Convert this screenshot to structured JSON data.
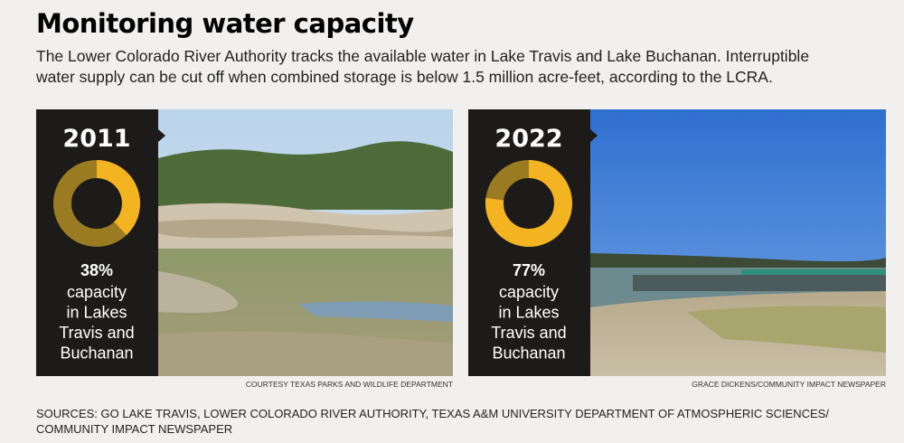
{
  "title": "Monitoring water capacity",
  "description": [
    "The Lower Colorado River Authority tracks the available water in Lake Travis and Lake Buchanan. Interruptible",
    "water supply can be cut off when combined storage is below 1.5 million acre-feet, according to the LCRA."
  ],
  "panels": [
    {
      "year": "2011",
      "value": 38,
      "value_label": "38%",
      "caption": [
        "capacity",
        "in Lakes",
        "Travis and",
        "Buchanan"
      ],
      "credit": "COURTESY TEXAS PARKS AND WILDLIFE DEPARTMENT"
    },
    {
      "year": "2022",
      "value": 77,
      "value_label": "77%",
      "caption": [
        "capacity",
        "in Lakes",
        "Travis and",
        "Buchanan"
      ],
      "credit": "GRACE DICKENS/COMMUNITY IMPACT NEWSPAPER"
    }
  ],
  "sources": [
    "SOURCES: GO LAKE TRAVIS, LOWER COLORADO RIVER AUTHORITY, TEXAS A&M UNIVERSITY DEPARTMENT OF ATMOSPHERIC SCIENCES/",
    "COMMUNITY IMPACT NEWSPAPER"
  ]
}
